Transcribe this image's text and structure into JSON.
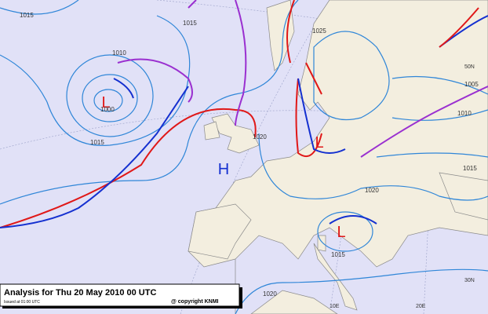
{
  "caption": {
    "title": "Analysis for Thu 20 May 2010 00 UTC",
    "issued": "Issued at 01:00 UTC",
    "copyright": "@ copyright KNMI"
  },
  "pressure_centers": [
    "L",
    "H",
    "L",
    "L"
  ],
  "isobar_labels": [
    "1015",
    "1010",
    "1000",
    "1015",
    "1015",
    "1025",
    "1020",
    "1020",
    "1015",
    "1020",
    "1005",
    "1015",
    "1010"
  ],
  "grid_labels": [
    "50N",
    "30N",
    "10E",
    "20E"
  ]
}
